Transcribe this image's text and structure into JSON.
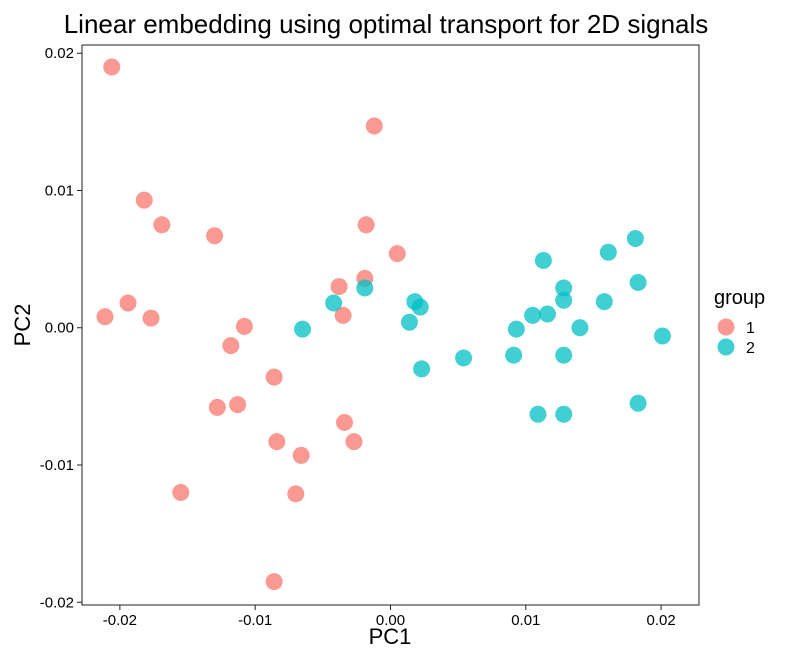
{
  "chart_data": {
    "type": "scatter",
    "title": "Linear embedding using optimal transport for 2D signals",
    "xlabel": "PC1",
    "ylabel": "PC2",
    "xlim": [
      -0.0228,
      0.0228
    ],
    "ylim": [
      -0.0202,
      0.0206
    ],
    "x_ticks": [
      -0.02,
      -0.01,
      0.0,
      0.01,
      0.02
    ],
    "x_tick_labels": [
      "-0.02",
      "-0.01",
      "0.00",
      "0.01",
      "0.02"
    ],
    "y_ticks": [
      -0.02,
      -0.01,
      0.0,
      0.01,
      0.02
    ],
    "y_tick_labels": [
      "-0.02",
      "-0.01",
      "0.00",
      "0.01",
      "0.02"
    ],
    "grid": false,
    "legend": {
      "title": "group",
      "placement": "right"
    },
    "series": [
      {
        "name": "1",
        "color": "#F8766D",
        "points": [
          [
            -0.0206,
            0.019
          ],
          [
            -0.0211,
            0.0008
          ],
          [
            -0.0194,
            0.0018
          ],
          [
            -0.0182,
            0.0093
          ],
          [
            -0.0177,
            0.0007
          ],
          [
            -0.0169,
            0.0075
          ],
          [
            -0.0155,
            -0.012
          ],
          [
            -0.013,
            0.0067
          ],
          [
            -0.0128,
            -0.0058
          ],
          [
            -0.0118,
            -0.0013
          ],
          [
            -0.0113,
            -0.0056
          ],
          [
            -0.0108,
            0.0001
          ],
          [
            -0.0086,
            -0.0036
          ],
          [
            -0.0084,
            -0.0083
          ],
          [
            -0.0086,
            -0.0185
          ],
          [
            -0.0066,
            -0.0093
          ],
          [
            -0.007,
            -0.0121
          ],
          [
            -0.0038,
            0.003
          ],
          [
            -0.0035,
            0.0009
          ],
          [
            -0.0034,
            -0.0069
          ],
          [
            -0.0027,
            -0.0083
          ],
          [
            -0.0019,
            0.0036
          ],
          [
            -0.0018,
            0.0075
          ],
          [
            -0.0012,
            0.0147
          ],
          [
            0.0005,
            0.0054
          ]
        ]
      },
      {
        "name": "2",
        "color": "#00BFC4",
        "points": [
          [
            -0.0065,
            -0.0001
          ],
          [
            -0.0042,
            0.0018
          ],
          [
            -0.0019,
            0.0029
          ],
          [
            0.0014,
            0.0004
          ],
          [
            0.0018,
            0.0019
          ],
          [
            0.0022,
            0.0015
          ],
          [
            0.0023,
            -0.003
          ],
          [
            0.0054,
            -0.0022
          ],
          [
            0.0091,
            -0.002
          ],
          [
            0.0093,
            -0.0001
          ],
          [
            0.0105,
            0.0009
          ],
          [
            0.0109,
            -0.0063
          ],
          [
            0.0113,
            0.0049
          ],
          [
            0.0116,
            0.001
          ],
          [
            0.0128,
            0.0029
          ],
          [
            0.0128,
            0.002
          ],
          [
            0.0128,
            -0.002
          ],
          [
            0.0128,
            -0.0063
          ],
          [
            0.014,
            0.0
          ],
          [
            0.0158,
            0.0019
          ],
          [
            0.0161,
            0.0055
          ],
          [
            0.0181,
            0.0065
          ],
          [
            0.0183,
            0.0033
          ],
          [
            0.0183,
            -0.0055
          ],
          [
            0.0201,
            -0.0006
          ]
        ]
      }
    ]
  }
}
